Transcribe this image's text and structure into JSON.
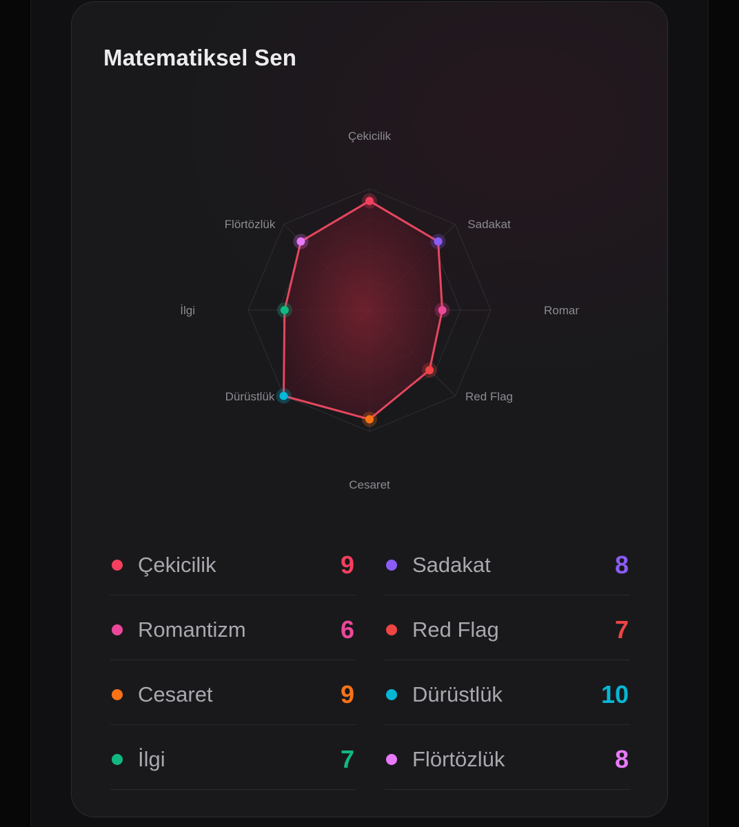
{
  "card": {
    "title": "Matematiksel Sen"
  },
  "chart_data": {
    "type": "radar",
    "axes": [
      "Çekicilik",
      "Sadakat",
      "Roman",
      "Red Flag",
      "Cesaret",
      "Dürüstlük",
      "İlgi",
      "Flörtözlük"
    ],
    "values": [
      9,
      8,
      6,
      7,
      9,
      10,
      7,
      8
    ],
    "max": 10,
    "rings": 4,
    "series_color": "#e5475e",
    "point_colors": [
      "#f43f5e",
      "#8b5cf6",
      "#ec4899",
      "#ef4444",
      "#f97316",
      "#06b6d4",
      "#10b981",
      "#e879f9"
    ]
  },
  "stats": [
    {
      "label": "Çekicilik",
      "value": "9",
      "color": "#f43f5e"
    },
    {
      "label": "Sadakat",
      "value": "8",
      "color": "#8b5cf6"
    },
    {
      "label": "Romantizm",
      "value": "6",
      "color": "#ec4899"
    },
    {
      "label": "Red Flag",
      "value": "7",
      "color": "#ef4444"
    },
    {
      "label": "Cesaret",
      "value": "9",
      "color": "#f97316"
    },
    {
      "label": "Dürüstlük",
      "value": "10",
      "color": "#06b6d4"
    },
    {
      "label": "İlgi",
      "value": "7",
      "color": "#10b981"
    },
    {
      "label": "Flörtözlük",
      "value": "8",
      "color": "#e879f9"
    }
  ]
}
